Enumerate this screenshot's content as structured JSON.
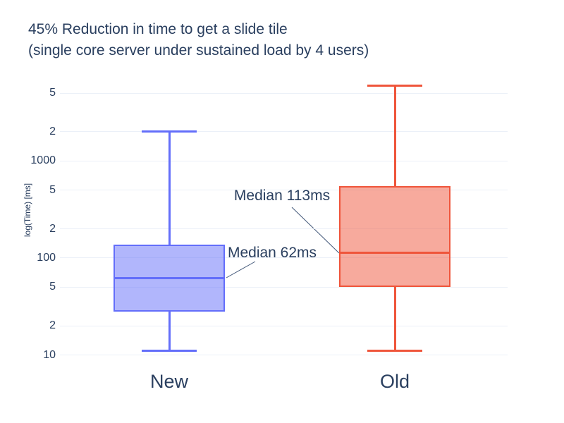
{
  "title": {
    "line1": "45% Reduction in time to get a slide tile",
    "line2": "(single core server under sustained load by 4 users)"
  },
  "chart_data": {
    "type": "box",
    "title": "45% Reduction in time to get a slide tile (single core server under sustained load by 4 users)",
    "xlabel": "",
    "ylabel": "log(Time) [ms]",
    "yscale": "log",
    "grid": true,
    "legend": false,
    "ylim_log10": [
      0.89,
      3.82
    ],
    "categories": [
      "New",
      "Old"
    ],
    "series": [
      {
        "name": "New",
        "line_color": "#636efa",
        "fill_color": "rgba(99,110,250,0.5)",
        "min": 11,
        "q1": 28,
        "median": 62,
        "q3": 138,
        "max": 2000
      },
      {
        "name": "Old",
        "line_color": "#ef553b",
        "fill_color": "rgba(239,85,59,0.5)",
        "min": 11,
        "q1": 50,
        "median": 113,
        "q3": 550,
        "max": 6000
      }
    ],
    "yticks": [
      {
        "label": "5",
        "value": 5000
      },
      {
        "label": "2",
        "value": 2000
      },
      {
        "label": "1000",
        "value": 1000
      },
      {
        "label": "5",
        "value": 500
      },
      {
        "label": "2",
        "value": 200
      },
      {
        "label": "100",
        "value": 100
      },
      {
        "label": "5",
        "value": 50
      },
      {
        "label": "2",
        "value": 20
      },
      {
        "label": "10",
        "value": 10
      }
    ],
    "annotations": [
      {
        "text": "Median 113ms",
        "text_x": 400,
        "text_y": 278,
        "line_from": [
          414,
          294
        ],
        "line_to": [
          481,
          359
        ]
      },
      {
        "text": "Median 62ms",
        "text_x": 386,
        "text_y": 359,
        "line_from": [
          362,
          371
        ],
        "line_to": [
          321,
          394
        ]
      }
    ],
    "colors": {
      "text": "#2a3f5f",
      "grid": "#ebf0f8",
      "annotation_line": "#44597a",
      "background": "#ffffff"
    }
  }
}
